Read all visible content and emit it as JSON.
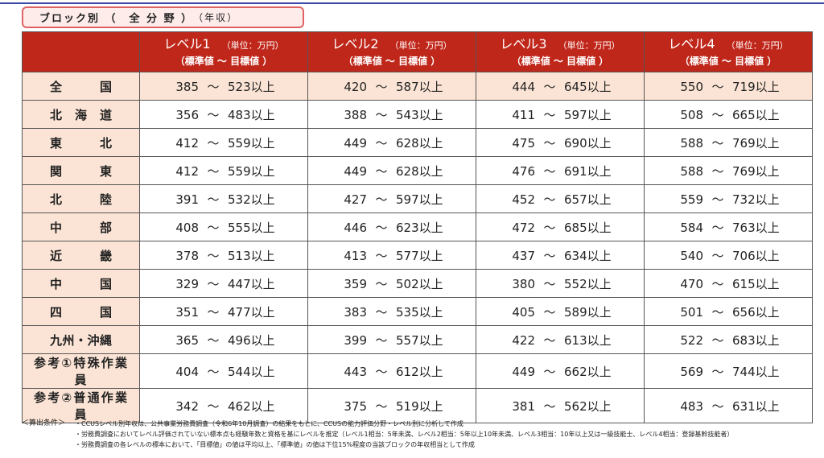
{
  "title": {
    "label": "ブロック別 （　全 分 野 ）",
    "suffix": "（年収）"
  },
  "table": {
    "columns": [
      {
        "level": "レベル1",
        "unit": "（単位：万円）",
        "sub": "（標準値 ～ 目標値 ）"
      },
      {
        "level": "レベル2",
        "unit": "（単位：万円）",
        "sub": "（標準値 ～ 目標値 ）"
      },
      {
        "level": "レベル3",
        "unit": "（単位：万円）",
        "sub": "（標準値 ～ 目標値 ）"
      },
      {
        "level": "レベル4",
        "unit": "（単位：万円）",
        "sub": "（標準値 ～ 目標値 ）"
      }
    ],
    "separator": "～",
    "suffix": "以上",
    "rows": [
      {
        "region": "全国",
        "values": [
          [
            "385",
            "523"
          ],
          [
            "420",
            "587"
          ],
          [
            "444",
            "645"
          ],
          [
            "550",
            "719"
          ]
        ]
      },
      {
        "region": "北海道",
        "values": [
          [
            "356",
            "483"
          ],
          [
            "388",
            "543"
          ],
          [
            "411",
            "597"
          ],
          [
            "508",
            "665"
          ]
        ]
      },
      {
        "region": "東北",
        "values": [
          [
            "412",
            "559"
          ],
          [
            "449",
            "628"
          ],
          [
            "475",
            "690"
          ],
          [
            "588",
            "769"
          ]
        ]
      },
      {
        "region": "関東",
        "values": [
          [
            "412",
            "559"
          ],
          [
            "449",
            "628"
          ],
          [
            "476",
            "691"
          ],
          [
            "588",
            "769"
          ]
        ]
      },
      {
        "region": "北陸",
        "values": [
          [
            "391",
            "532"
          ],
          [
            "427",
            "597"
          ],
          [
            "452",
            "657"
          ],
          [
            "559",
            "732"
          ]
        ]
      },
      {
        "region": "中部",
        "values": [
          [
            "408",
            "555"
          ],
          [
            "446",
            "623"
          ],
          [
            "472",
            "685"
          ],
          [
            "584",
            "763"
          ]
        ]
      },
      {
        "region": "近畿",
        "values": [
          [
            "378",
            "513"
          ],
          [
            "413",
            "577"
          ],
          [
            "437",
            "634"
          ],
          [
            "540",
            "706"
          ]
        ]
      },
      {
        "region": "中国",
        "values": [
          [
            "329",
            "447"
          ],
          [
            "359",
            "502"
          ],
          [
            "380",
            "552"
          ],
          [
            "470",
            "615"
          ]
        ]
      },
      {
        "region": "四国",
        "values": [
          [
            "351",
            "477"
          ],
          [
            "383",
            "535"
          ],
          [
            "405",
            "589"
          ],
          [
            "501",
            "656"
          ]
        ]
      },
      {
        "region": "九州・沖縄",
        "values": [
          [
            "365",
            "496"
          ],
          [
            "399",
            "557"
          ],
          [
            "422",
            "613"
          ],
          [
            "522",
            "683"
          ]
        ]
      },
      {
        "region": "参考①特殊作業員",
        "values": [
          [
            "404",
            "544"
          ],
          [
            "443",
            "612"
          ],
          [
            "449",
            "662"
          ],
          [
            "569",
            "744"
          ]
        ]
      },
      {
        "region": "参考②普通作業員",
        "values": [
          [
            "342",
            "462"
          ],
          [
            "375",
            "519"
          ],
          [
            "381",
            "562"
          ],
          [
            "483",
            "631"
          ]
        ]
      }
    ]
  },
  "notes": {
    "heading": "＜算出条件＞",
    "items": [
      "CCUSレベル別年収は、公共事業労務費調査（令和6年10月調査）の結果をもとに、CCUSの能力評価分野・レベル別に分析して作成",
      "労務費調査においてレベル評価されていない標本点も経験年数と資格を基にレベルを推定（レベル1相当：5年未満、レベル2相当：5年以上10年未満、レベル3相当：10年以上又は一級技能士、レベル4相当：登録基幹技能者）",
      "労務費調査の各レベルの標本において、「目標値」の値は平均以上、「標準値」の値は下位15%程度の当該ブロックの年収相当として作成"
    ]
  }
}
